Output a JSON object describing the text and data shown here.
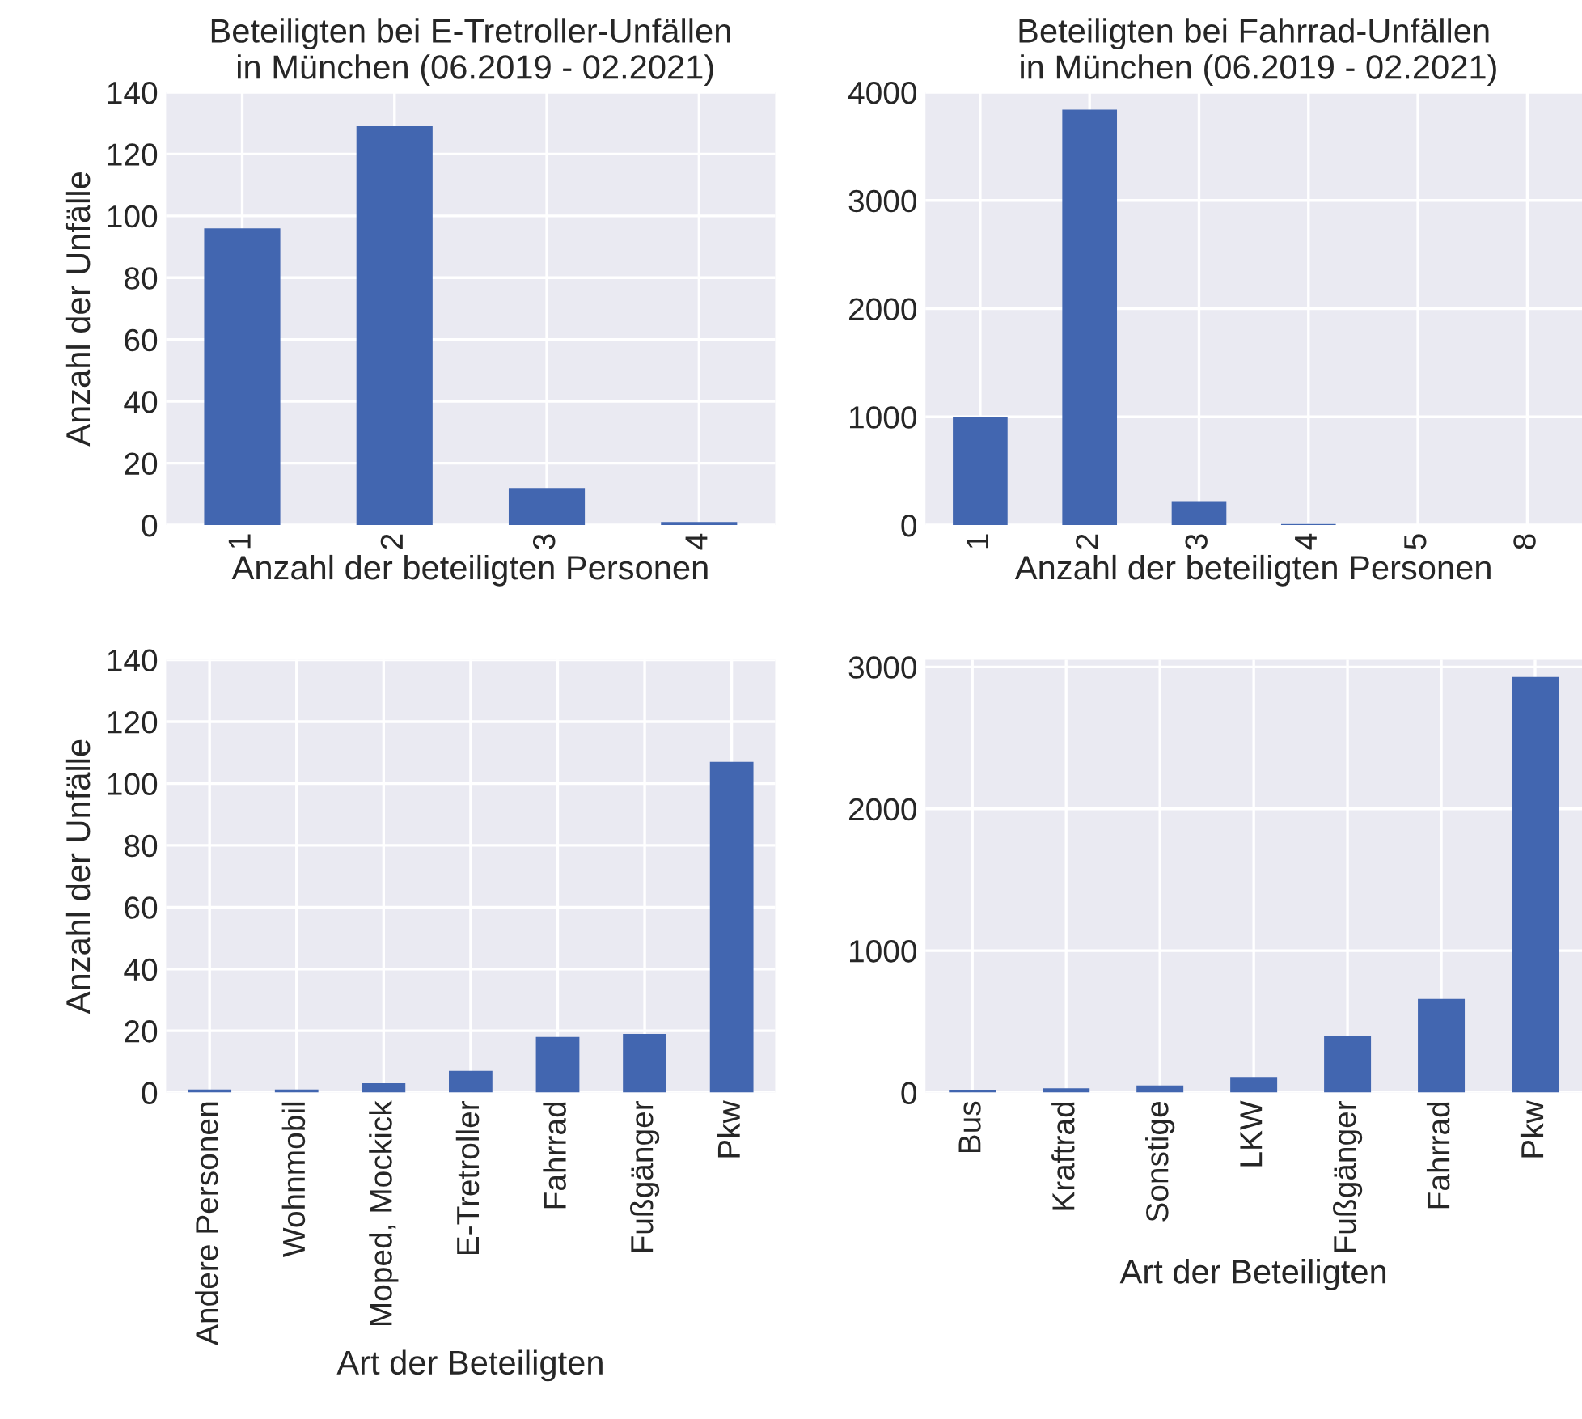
{
  "chart_data": [
    {
      "type": "bar",
      "title": "Beteiligten bei E-Tretroller-Unfällen\n in München (06.2019 - 02.2021)",
      "xlabel": "Anzahl der beteiligten Personen",
      "ylabel": "Anzahl der Unfälle",
      "categories": [
        "1",
        "2",
        "3",
        "4"
      ],
      "values": [
        96,
        129,
        12,
        1
      ],
      "color": "#4266b0",
      "ylim": [
        0,
        140
      ],
      "yticks": [
        0,
        20,
        40,
        60,
        80,
        100,
        120,
        140
      ],
      "grid": true
    },
    {
      "type": "bar",
      "title": "Beteiligten bei Fahrrad-Unfällen\n in München (06.2019 - 02.2021)",
      "xlabel": "Anzahl der beteiligten Personen",
      "categories": [
        "1",
        "2",
        "3",
        "4",
        "5",
        "8"
      ],
      "values": [
        1000,
        3840,
        220,
        10,
        null,
        null
      ],
      "color": "#4266b0",
      "ylim": [
        0,
        4000
      ],
      "yticks": [
        0,
        1000,
        2000,
        3000,
        4000
      ],
      "grid": true
    },
    {
      "type": "bar",
      "xlabel": "Art der Beteiligten",
      "ylabel": "Anzahl der Unfälle",
      "categories": [
        "Andere Personen",
        "Wohnmobil",
        "Moped, Mockick",
        "E-Tretroller",
        "Fahrrad",
        "Fußgänger",
        "Pkw"
      ],
      "values": [
        1,
        1,
        3,
        7,
        18,
        19,
        107
      ],
      "color": "#4266b0",
      "ylim": [
        0,
        140
      ],
      "yticks": [
        0,
        20,
        40,
        60,
        80,
        100,
        120,
        140
      ],
      "grid": true
    },
    {
      "type": "bar",
      "xlabel": "Art der Beteiligten",
      "categories": [
        "Bus",
        "Kraftrad",
        "Sonstige",
        "LKW",
        "Fußgänger",
        "Fahrrad",
        "Pkw"
      ],
      "values": [
        20,
        30,
        50,
        110,
        400,
        660,
        2930
      ],
      "color": "#4266b0",
      "ylim": [
        0,
        3050
      ],
      "yticks": [
        0,
        1000,
        2000,
        3000
      ],
      "grid": true
    }
  ]
}
